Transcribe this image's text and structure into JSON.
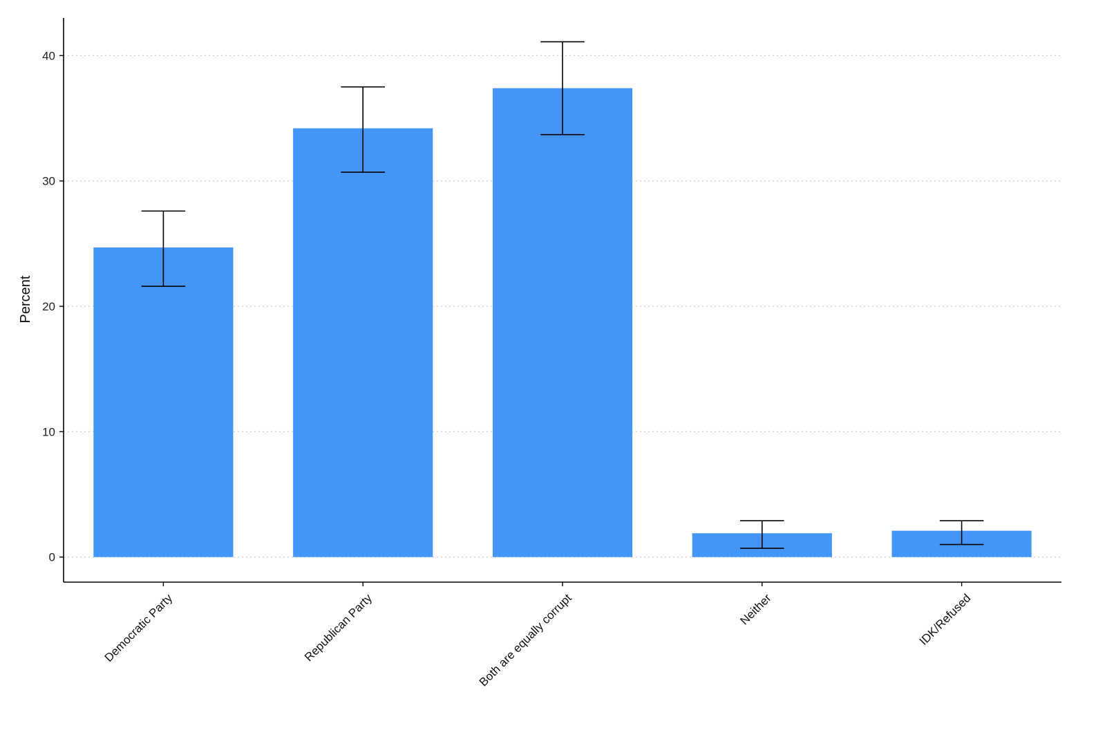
{
  "chart_data": {
    "type": "bar",
    "title": "",
    "xlabel": "",
    "ylabel": "Percent",
    "ylim": [
      -2,
      43
    ],
    "yticks": [
      0,
      10,
      20,
      30,
      40
    ],
    "grid": "horizontal dotted",
    "legend": "none",
    "bar_color": "#4496f6",
    "categories": [
      "Democratic Party",
      "Republican Party",
      "Both are equally corrupt",
      "Neither",
      "IDK/Refused"
    ],
    "values": [
      24.7,
      34.2,
      37.4,
      1.9,
      2.1
    ],
    "error_low": [
      21.6,
      30.7,
      33.7,
      0.7,
      1.0
    ],
    "error_high": [
      27.6,
      37.5,
      41.1,
      2.9,
      2.9
    ]
  }
}
